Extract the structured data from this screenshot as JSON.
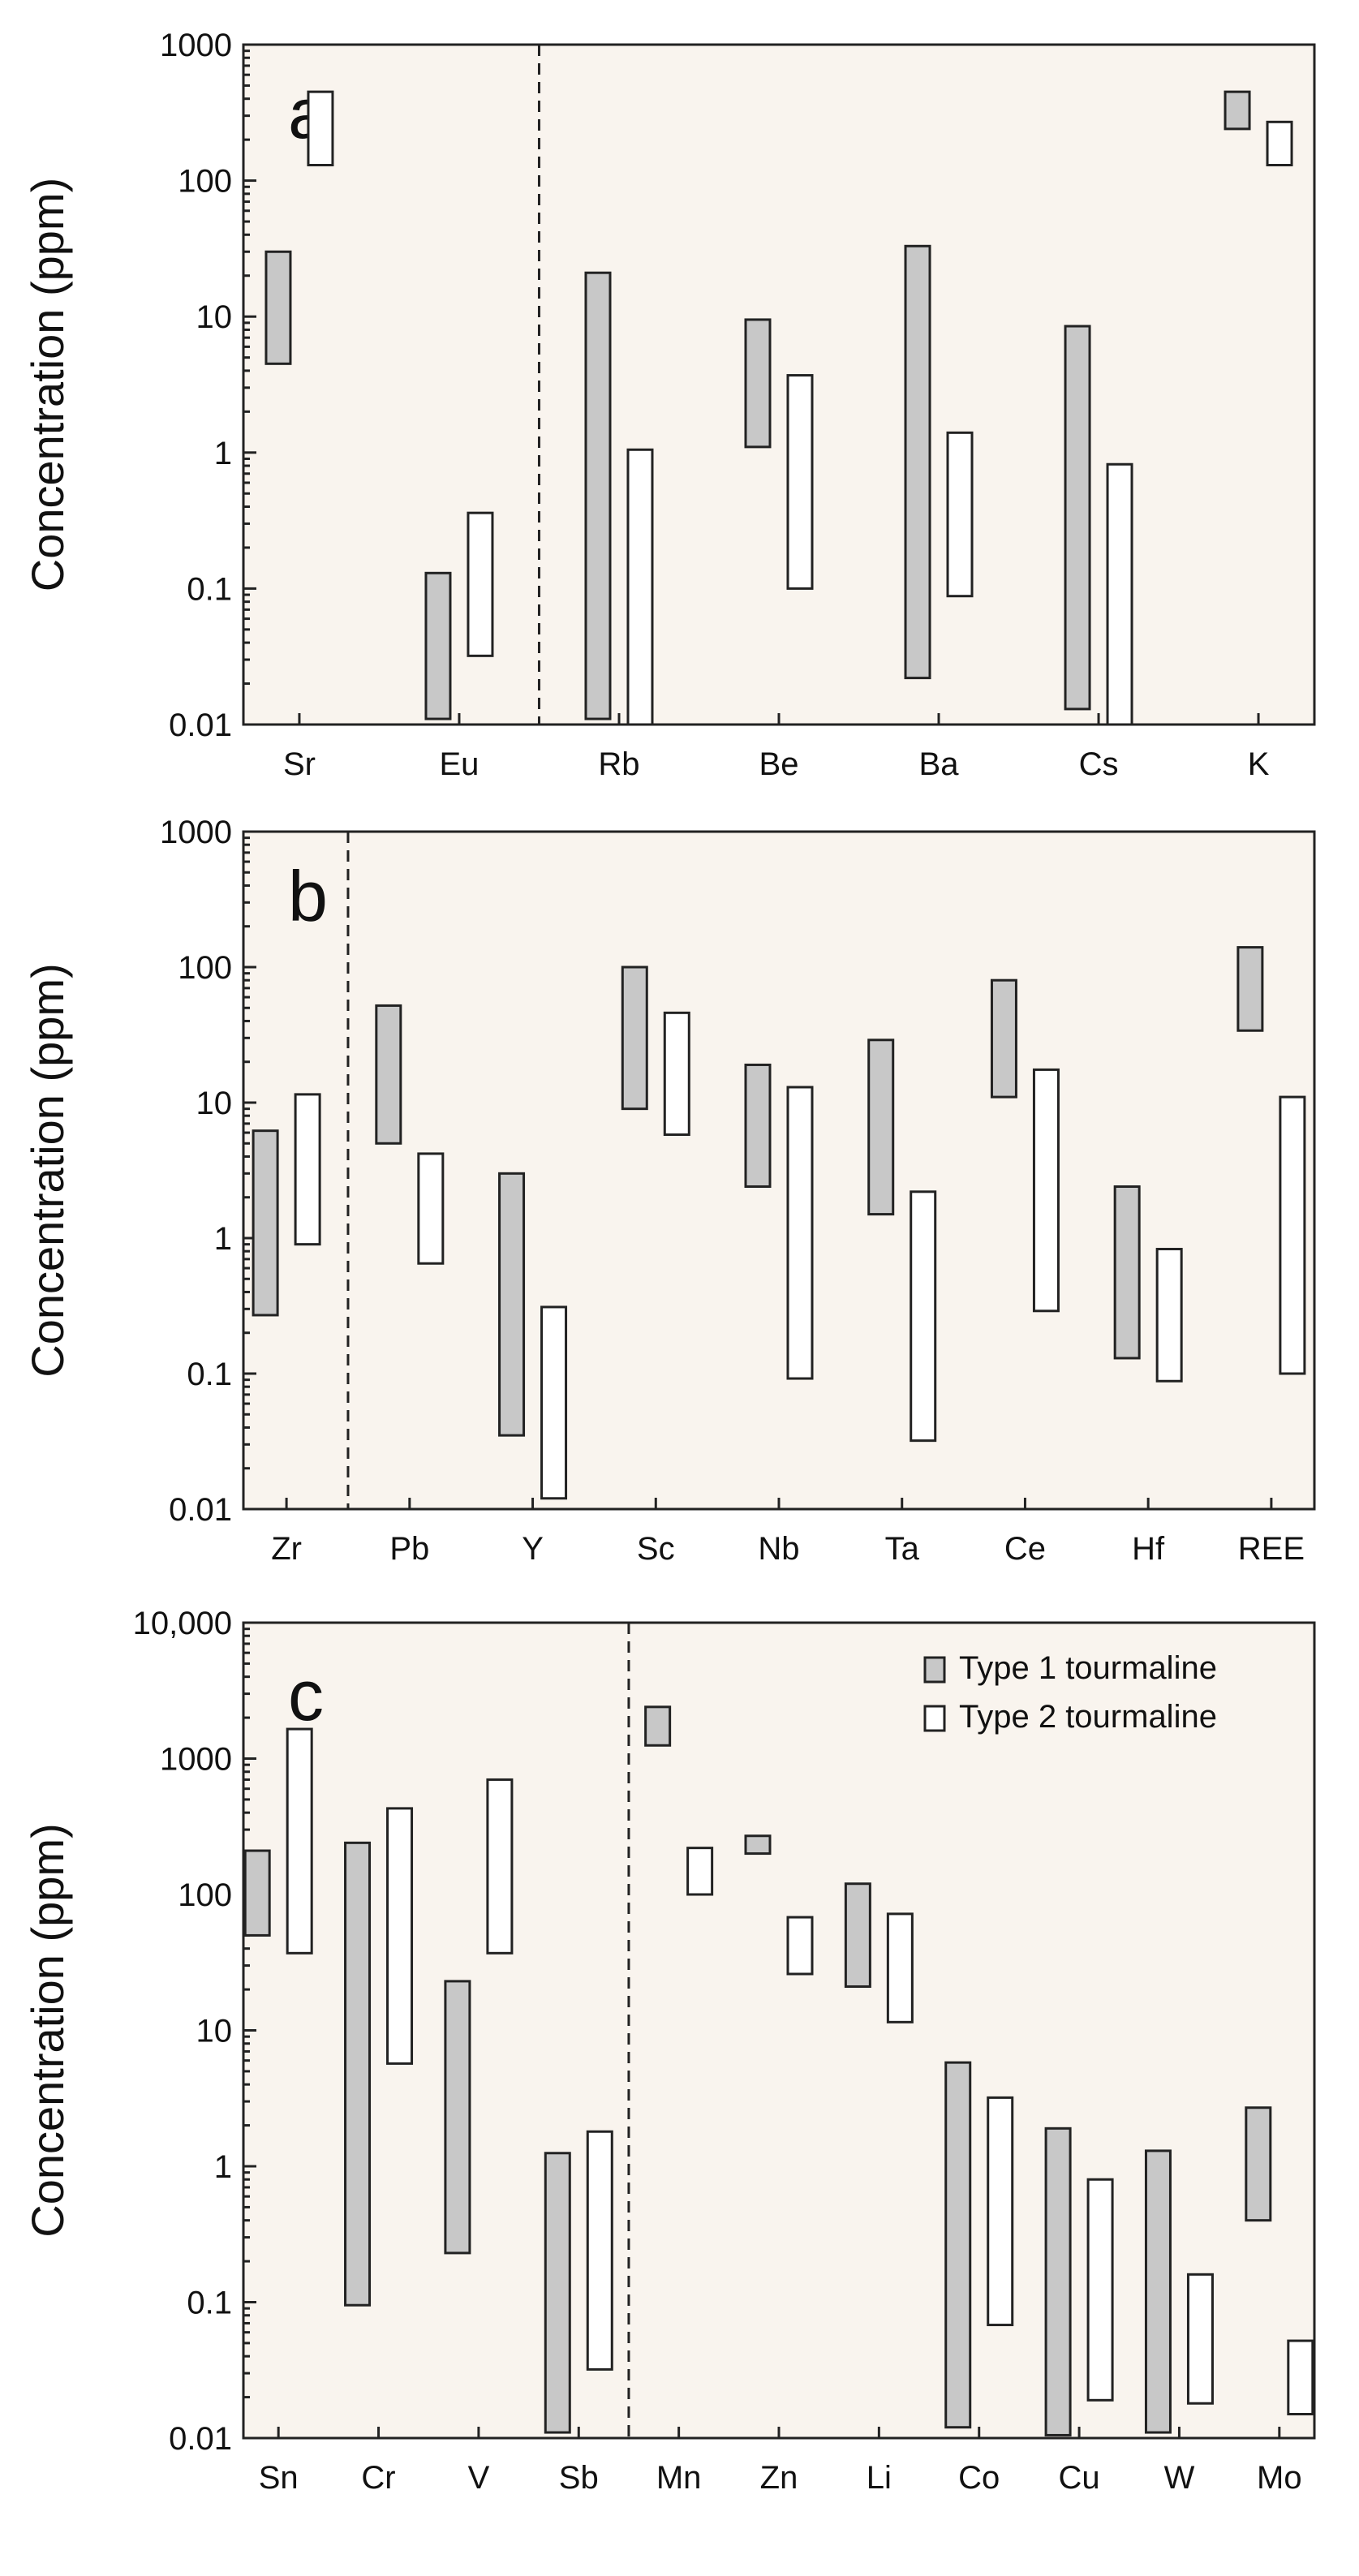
{
  "colors": {
    "type1": "#c8c8c8",
    "type2": "#ffffff",
    "stroke": "#222222",
    "background": "#f9f4ee"
  },
  "legend": [
    {
      "label": "Type 1 tourmaline",
      "series": "type1"
    },
    {
      "label": "Type 2 tourmaline",
      "series": "type2"
    }
  ],
  "chart_data": [
    {
      "type": "bar",
      "panel": "a",
      "ylabel": "Concentration (ppm)",
      "yscale": "log",
      "ylim": [
        0.01,
        1000
      ],
      "yticks": [
        "0.01",
        "0.1",
        "1",
        "10",
        "100",
        "1000"
      ],
      "categories": [
        "Sr",
        "Eu",
        "Rb",
        "Be",
        "Ba",
        "Cs",
        "K"
      ],
      "divider_after": 1,
      "series": [
        {
          "name": "Type 1 tourmaline",
          "ranges": [
            [
              4.5,
              30
            ],
            [
              0.011,
              0.13
            ],
            [
              0.011,
              21
            ],
            [
              1.1,
              9.5
            ],
            [
              0.022,
              33
            ],
            [
              0.013,
              8.5
            ],
            [
              240,
              450
            ]
          ]
        },
        {
          "name": "Type 2 tourmaline",
          "ranges": [
            [
              130,
              450
            ],
            [
              0.032,
              0.36
            ],
            [
              0.01,
              1.05
            ],
            [
              0.1,
              3.7
            ],
            [
              0.088,
              1.4
            ],
            [
              0.01,
              0.82
            ],
            [
              130,
              270
            ]
          ]
        }
      ]
    },
    {
      "type": "bar",
      "panel": "b",
      "ylabel": "Concentration (ppm)",
      "yscale": "log",
      "ylim": [
        0.01,
        1000
      ],
      "yticks": [
        "0.01",
        "0.1",
        "1",
        "10",
        "100",
        "1000"
      ],
      "categories": [
        "Zr",
        "Pb",
        "Y",
        "Sc",
        "Nb",
        "Ta",
        "Ce",
        "Hf",
        "REE"
      ],
      "divider_after": 0,
      "series": [
        {
          "name": "Type 1 tourmaline",
          "ranges": [
            [
              0.27,
              6.2
            ],
            [
              5,
              52
            ],
            [
              0.035,
              3
            ],
            [
              9,
              100
            ],
            [
              2.4,
              19
            ],
            [
              1.5,
              29
            ],
            [
              11,
              80
            ],
            [
              0.13,
              2.4
            ],
            [
              34,
              140
            ]
          ]
        },
        {
          "name": "Type 2 tourmaline",
          "ranges": [
            [
              0.9,
              11.5
            ],
            [
              0.65,
              4.2
            ],
            [
              0.012,
              0.31
            ],
            [
              5.8,
              46
            ],
            [
              0.092,
              13
            ],
            [
              0.032,
              2.2
            ],
            [
              0.29,
              17.5
            ],
            [
              0.088,
              0.83
            ],
            [
              0.1,
              11
            ]
          ]
        }
      ]
    },
    {
      "type": "bar",
      "panel": "c",
      "ylabel": "Concentration (ppm)",
      "yscale": "log",
      "ylim": [
        0.01,
        10000
      ],
      "yticks": [
        "0.01",
        "0.1",
        "1",
        "10",
        "100",
        "1000",
        "10,000"
      ],
      "categories": [
        "Sn",
        "Cr",
        "V",
        "Sb",
        "Mn",
        "Zn",
        "Li",
        "Co",
        "Cu",
        "W",
        "Mo"
      ],
      "divider_after": 3,
      "series": [
        {
          "name": "Type 1 tourmaline",
          "ranges": [
            [
              50,
              210
            ],
            [
              0.095,
              240
            ],
            [
              0.23,
              23
            ],
            [
              0.011,
              1.25
            ],
            [
              1250,
              2400
            ],
            [
              200,
              270
            ],
            [
              21,
              120
            ],
            [
              0.012,
              5.8
            ],
            [
              0.0105,
              1.9
            ],
            [
              0.011,
              1.3
            ],
            [
              0.4,
              2.7
            ]
          ]
        },
        {
          "name": "Type 2 tourmaline",
          "ranges": [
            [
              37,
              1650
            ],
            [
              5.7,
              430
            ],
            [
              37,
              700
            ],
            [
              0.032,
              1.8
            ],
            [
              100,
              220
            ],
            [
              26,
              68
            ],
            [
              11.5,
              72
            ],
            [
              0.068,
              3.2
            ],
            [
              0.019,
              0.8
            ],
            [
              0.018,
              0.16
            ],
            [
              0.015,
              0.052
            ]
          ]
        }
      ]
    }
  ]
}
